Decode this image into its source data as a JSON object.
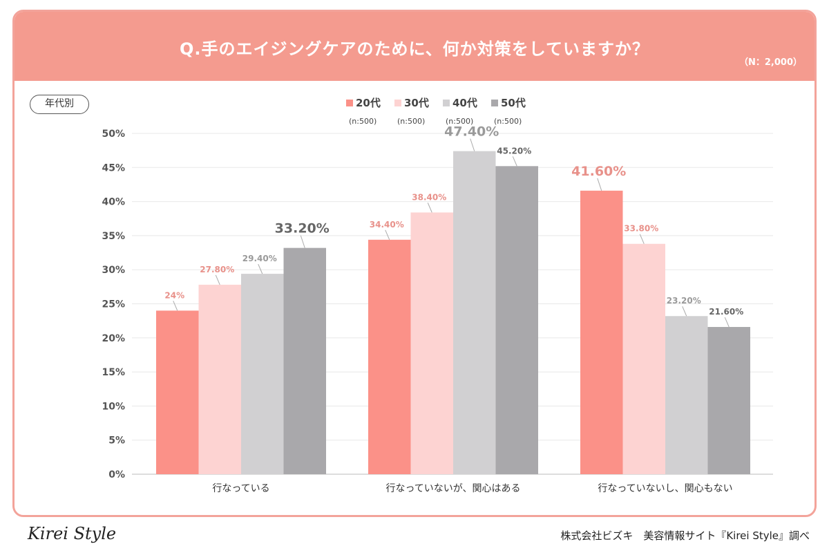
{
  "header": {
    "title": "Q.手のエイジングケアのために、何か対策をしていますか？",
    "sample_size": "（N：2,000）"
  },
  "filter_pill": "年代別",
  "footer": {
    "logo": "Kirei Style",
    "source": "株式会社ビズキ　美容情報サイト『Kirei Style』調べ"
  },
  "colors": {
    "header_bg": "#f49b8f",
    "border": "#f3a39a",
    "series": [
      "#fb9188",
      "#fdd3d2",
      "#d1d0d2",
      "#a9a8ab"
    ],
    "label_text": [
      "#e8918a",
      "#e8918a",
      "#9a9a9a",
      "#666666"
    ]
  },
  "chart_data": {
    "type": "bar",
    "categories": [
      "行なっている",
      "行なっていないが、関心はある",
      "行なっていないし、関心もない"
    ],
    "series": [
      {
        "name": "20代",
        "sub": "(n:500)",
        "values": [
          24,
          34.4,
          41.6
        ],
        "labels": [
          "24%",
          "34.40%",
          "41.60%"
        ]
      },
      {
        "name": "30代",
        "sub": "(n:500)",
        "values": [
          27.8,
          38.4,
          33.8
        ],
        "labels": [
          "27.80%",
          "38.40%",
          "33.80%"
        ]
      },
      {
        "name": "40代",
        "sub": "(n:500)",
        "values": [
          29.4,
          47.4,
          23.2
        ],
        "labels": [
          "29.40%",
          "47.40%",
          "23.20%"
        ]
      },
      {
        "name": "50代",
        "sub": "(n:500)",
        "values": [
          33.2,
          45.2,
          21.6
        ],
        "labels": [
          "33.20%",
          "45.20%",
          "21.60%"
        ]
      }
    ],
    "y_ticks": [
      "0%",
      "5%",
      "10%",
      "15%",
      "20%",
      "25%",
      "30%",
      "35%",
      "40%",
      "45%",
      "50%"
    ],
    "ylim": [
      0,
      50
    ],
    "highlight": {
      "0": 3,
      "1": 2,
      "2": 0
    },
    "legend": "top-center",
    "grid": true
  }
}
